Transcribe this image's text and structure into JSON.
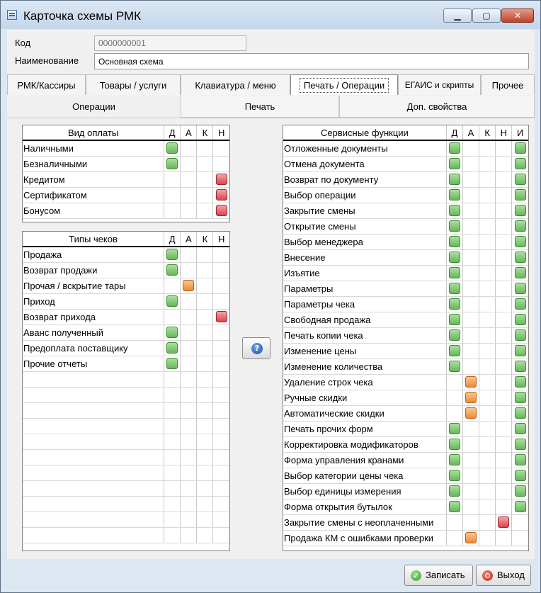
{
  "window": {
    "title": "Карточка схемы РМК",
    "minimize": "▁",
    "maximize": "▢",
    "close": "✕"
  },
  "form": {
    "code_label": "Код",
    "code_value": "0000000001",
    "name_label": "Наименование",
    "name_value": "Основная схема"
  },
  "tabs": [
    {
      "label": "РМК/Кассиры"
    },
    {
      "label": "Товары / услуги"
    },
    {
      "label": "Клавиатура / меню"
    },
    {
      "label": "Печать / Операции"
    },
    {
      "label": "ЕГАИС и скрипты"
    },
    {
      "label": "Прочее"
    }
  ],
  "subtabs": [
    {
      "label": "Операции"
    },
    {
      "label": "Печать"
    },
    {
      "label": "Доп. свойства"
    }
  ],
  "flag_columns": [
    "Д",
    "А",
    "К",
    "Н"
  ],
  "service_flag_columns": [
    "Д",
    "А",
    "К",
    "Н",
    "И"
  ],
  "payment_types": {
    "header": "Вид оплаты",
    "rows": [
      {
        "name": "Наличными",
        "flags": [
          "green",
          "",
          "",
          ""
        ]
      },
      {
        "name": "Безналичными",
        "flags": [
          "green",
          "",
          "",
          ""
        ]
      },
      {
        "name": "Кредитом",
        "flags": [
          "",
          "",
          "",
          "red"
        ]
      },
      {
        "name": "Сертификатом",
        "flags": [
          "",
          "",
          "",
          "red"
        ]
      },
      {
        "name": "Бонусом",
        "flags": [
          "",
          "",
          "",
          "red"
        ]
      }
    ]
  },
  "receipt_types": {
    "header": "Типы чеков",
    "rows": [
      {
        "name": "Продажа",
        "flags": [
          "green",
          "",
          "",
          ""
        ]
      },
      {
        "name": "Возврат продажи",
        "flags": [
          "green",
          "",
          "",
          ""
        ]
      },
      {
        "name": "Прочая / вскрытие тары",
        "flags": [
          "",
          "orange",
          "",
          ""
        ]
      },
      {
        "name": "Приход",
        "flags": [
          "green",
          "",
          "",
          ""
        ]
      },
      {
        "name": "Возврат прихода",
        "flags": [
          "",
          "",
          "",
          "red"
        ]
      },
      {
        "name": "Аванс полученный",
        "flags": [
          "green",
          "",
          "",
          ""
        ]
      },
      {
        "name": "Предоплата поставщику",
        "flags": [
          "green",
          "",
          "",
          ""
        ]
      },
      {
        "name": "Прочие отчеты",
        "flags": [
          "green",
          "",
          "",
          ""
        ]
      }
    ]
  },
  "service_functions": {
    "header": "Сервисные функции",
    "rows": [
      {
        "name": "Отложенные документы",
        "flags": [
          "green",
          "",
          "",
          "",
          "green"
        ]
      },
      {
        "name": "Отмена документа",
        "flags": [
          "green",
          "",
          "",
          "",
          "green"
        ]
      },
      {
        "name": "Возврат по документу",
        "flags": [
          "green",
          "",
          "",
          "",
          "green"
        ]
      },
      {
        "name": "Выбор операции",
        "flags": [
          "green",
          "",
          "",
          "",
          "green"
        ]
      },
      {
        "name": "Закрытие смены",
        "flags": [
          "green",
          "",
          "",
          "",
          "green"
        ]
      },
      {
        "name": "Открытие смены",
        "flags": [
          "green",
          "",
          "",
          "",
          "green"
        ]
      },
      {
        "name": "Выбор менеджера",
        "flags": [
          "green",
          "",
          "",
          "",
          "green"
        ]
      },
      {
        "name": "Внесение",
        "flags": [
          "green",
          "",
          "",
          "",
          "green"
        ]
      },
      {
        "name": "Изъятие",
        "flags": [
          "green",
          "",
          "",
          "",
          "green"
        ]
      },
      {
        "name": "Параметры",
        "flags": [
          "green",
          "",
          "",
          "",
          "green"
        ]
      },
      {
        "name": "Параметры чека",
        "flags": [
          "green",
          "",
          "",
          "",
          "green"
        ]
      },
      {
        "name": "Свободная продажа",
        "flags": [
          "green",
          "",
          "",
          "",
          "green"
        ]
      },
      {
        "name": "Печать копии чека",
        "flags": [
          "green",
          "",
          "",
          "",
          "green"
        ]
      },
      {
        "name": "Изменение цены",
        "flags": [
          "green",
          "",
          "",
          "",
          "green"
        ]
      },
      {
        "name": "Изменение количества",
        "flags": [
          "green",
          "",
          "",
          "",
          "green"
        ]
      },
      {
        "name": "Удаление строк чека",
        "flags": [
          "",
          "orange",
          "",
          "",
          "green"
        ]
      },
      {
        "name": "Ручные скидки",
        "flags": [
          "",
          "orange",
          "",
          "",
          "green"
        ]
      },
      {
        "name": "Автоматические скидки",
        "flags": [
          "",
          "orange",
          "",
          "",
          "green"
        ]
      },
      {
        "name": "Печать прочих форм",
        "flags": [
          "green",
          "",
          "",
          "",
          "green"
        ]
      },
      {
        "name": "Корректировка модификаторов",
        "flags": [
          "green",
          "",
          "",
          "",
          "green"
        ]
      },
      {
        "name": "Форма управления кранами",
        "flags": [
          "green",
          "",
          "",
          "",
          "green"
        ]
      },
      {
        "name": "Выбор категории цены чека",
        "flags": [
          "green",
          "",
          "",
          "",
          "green"
        ]
      },
      {
        "name": "Выбор единицы измерения",
        "flags": [
          "green",
          "",
          "",
          "",
          "green"
        ]
      },
      {
        "name": "Форма открытия бутылок",
        "flags": [
          "green",
          "",
          "",
          "",
          "green"
        ]
      },
      {
        "name": "Закрытие смены с неоплаченными",
        "flags": [
          "",
          "",
          "",
          "red",
          ""
        ]
      },
      {
        "name": "Продажа КМ с ошибками проверки",
        "flags": [
          "",
          "orange",
          "",
          "",
          ""
        ]
      }
    ]
  },
  "help_icon": "?",
  "buttons": {
    "save": "Записать",
    "exit": "Выход"
  },
  "colors": {
    "green": "#68b65a",
    "orange": "#ea8a3a",
    "red": "#d8464f"
  }
}
